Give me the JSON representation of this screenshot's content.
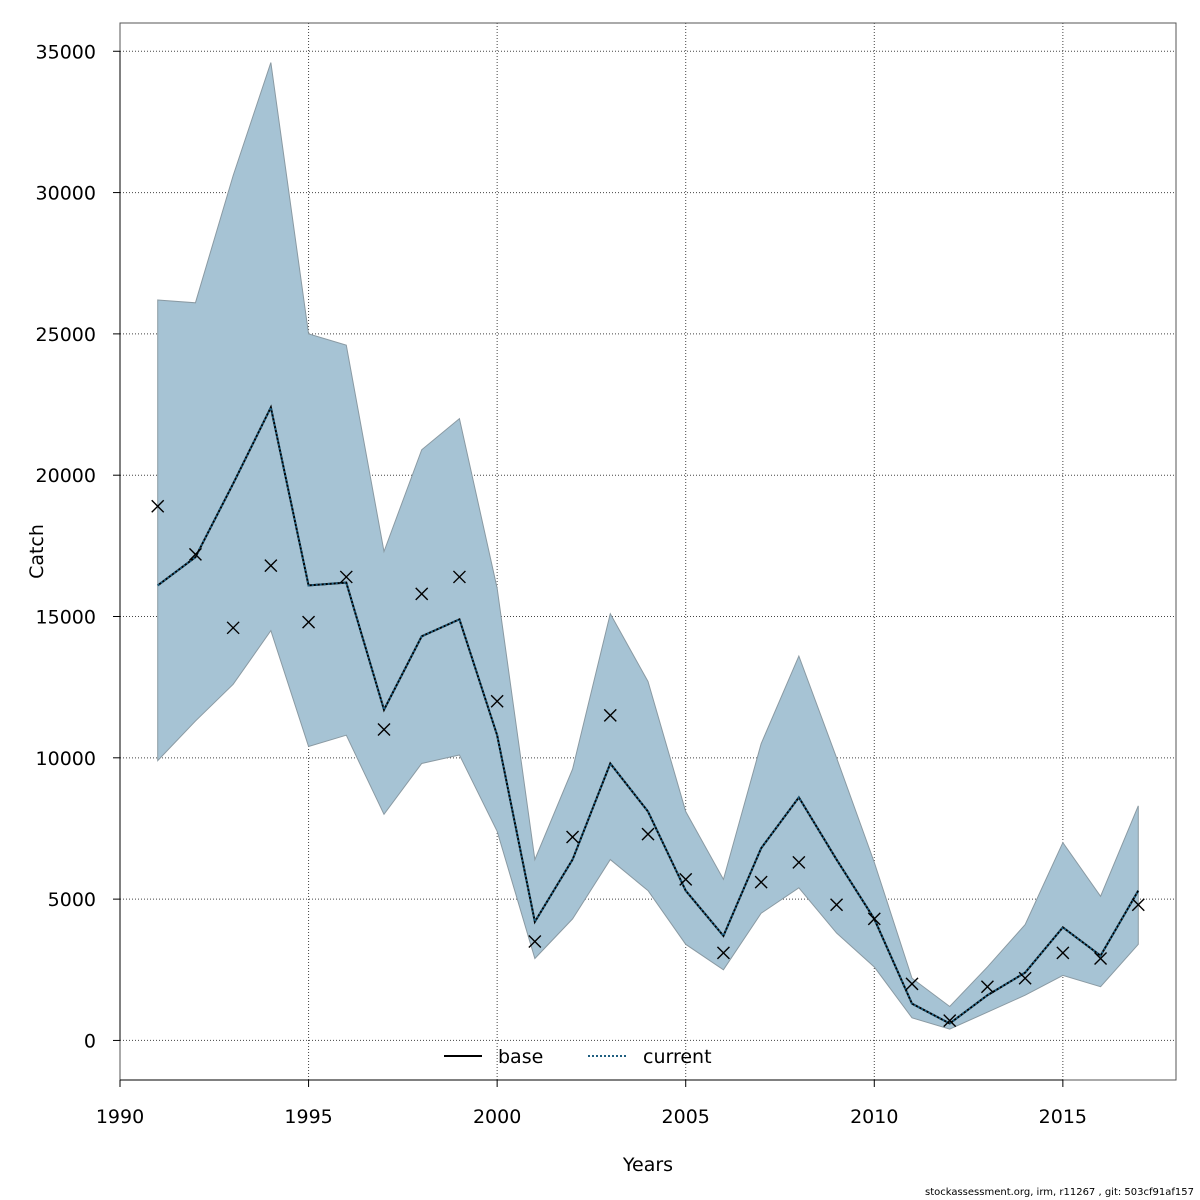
{
  "chart_data": {
    "type": "line",
    "title": "",
    "xlabel": "Years",
    "ylabel": "Catch",
    "xlim": [
      1990,
      2018
    ],
    "ylim": [
      -1400,
      36000
    ],
    "grid": true,
    "x_ticks": [
      1990,
      1995,
      2000,
      2005,
      2010,
      2015
    ],
    "y_ticks": [
      0,
      5000,
      10000,
      15000,
      20000,
      25000,
      30000,
      35000
    ],
    "legend_position": "bottom-center",
    "x": [
      1991,
      1992,
      1993,
      1994,
      1995,
      1996,
      1997,
      1998,
      1999,
      2000,
      2001,
      2002,
      2003,
      2004,
      2005,
      2006,
      2007,
      2008,
      2009,
      2010,
      2011,
      2012,
      2013,
      2014,
      2015,
      2016,
      2017
    ],
    "series": [
      {
        "name": "base",
        "style": "solid",
        "color": "#000000",
        "values": [
          16100,
          17100,
          19700,
          22400,
          16100,
          16200,
          11700,
          14300,
          14900,
          10800,
          4200,
          6400,
          9800,
          8100,
          5300,
          3700,
          6800,
          8600,
          6400,
          4300,
          1300,
          600,
          1600,
          2400,
          4000,
          3000,
          5300
        ]
      },
      {
        "name": "current",
        "style": "dotted",
        "color": "#1f5f80",
        "values": [
          16100,
          17100,
          19700,
          22400,
          16100,
          16200,
          11700,
          14300,
          14900,
          10800,
          4200,
          6400,
          9800,
          8100,
          5300,
          3700,
          6800,
          8600,
          6400,
          4300,
          1300,
          600,
          1600,
          2400,
          4000,
          3000,
          5300
        ]
      }
    ],
    "confidence_band": {
      "color": "#a6c3d4",
      "upper": [
        26200,
        26100,
        30600,
        34600,
        25000,
        24600,
        17300,
        20900,
        22000,
        16000,
        6400,
        9600,
        15100,
        12700,
        8100,
        5700,
        10500,
        13600,
        10000,
        6300,
        2200,
        1200,
        2600,
        4100,
        7000,
        5100,
        8300
      ],
      "lower": [
        9900,
        11300,
        12600,
        14500,
        10400,
        10800,
        8000,
        9800,
        10100,
        7400,
        2900,
        4300,
        6400,
        5300,
        3400,
        2500,
        4500,
        5400,
        3800,
        2600,
        800,
        400,
        1000,
        1600,
        2300,
        1900,
        3400
      ]
    },
    "observations": {
      "marker": "x",
      "values": [
        18900,
        17200,
        14600,
        16800,
        14800,
        16400,
        11000,
        15800,
        16400,
        12000,
        3500,
        7200,
        11500,
        7300,
        5700,
        3100,
        5600,
        6300,
        4800,
        4300,
        2000,
        700,
        1900,
        2200,
        3100,
        2900,
        4800
      ]
    }
  },
  "footer_text": "stockassessment.org, irm, r11267 , git: 503cf91af157"
}
